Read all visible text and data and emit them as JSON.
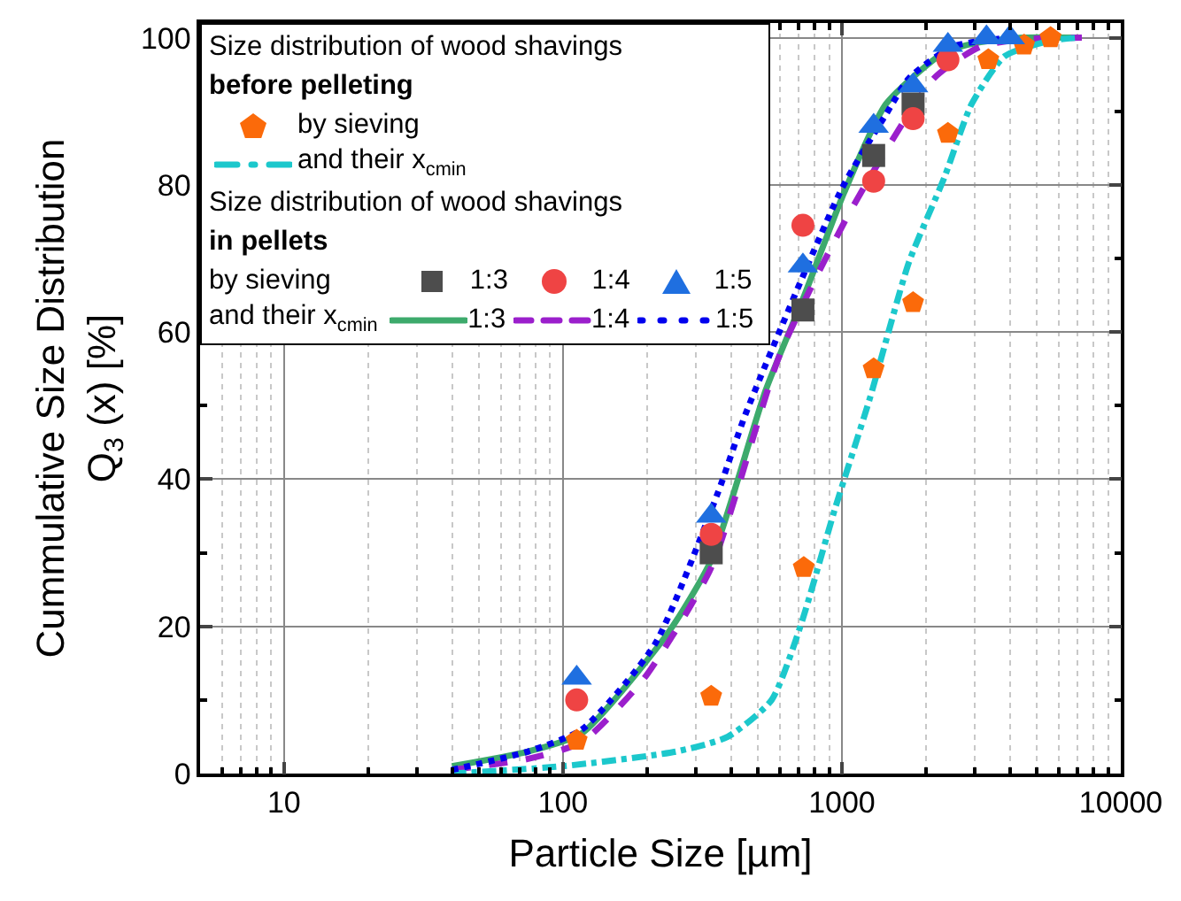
{
  "chart_data": {
    "type": "scatter",
    "xlabel": "Particle Size [µm]",
    "ylabel": "Cummulative Size Distribution\nQ$_{3}$ (x) [%]",
    "log": "x",
    "xlim": [
      5,
      10000
    ],
    "xticks": [
      10,
      100,
      1000,
      10000
    ],
    "ylim": [
      0,
      102
    ],
    "yticks": [
      0,
      20,
      40,
      60,
      80,
      100
    ],
    "grid": true,
    "legend": "top left",
    "annotations": [
      "Size distribution of wood shavings",
      "before pelleting",
      "Size distribution of wood shavings",
      "in pellets",
      "by sieving",
      "and their x$_{cmin}$"
    ],
    "series": [
      {
        "name": "by sieving",
        "color": "#fb6a0a",
        "x": [
          112,
          340,
          730,
          1300,
          1800,
          2400,
          3350,
          4500,
          5600
        ],
        "values": [
          4.5,
          10.5,
          28,
          55,
          64,
          87,
          97,
          99,
          100
        ]
      },
      {
        "name": "and their x$_{cmin}$",
        "type": "line",
        "marker": "none",
        "line_style": "dashdot",
        "color": "#1cc8cc",
        "x": [
          40,
          100,
          255,
          390,
          560,
          710,
          945,
          1260,
          1740,
          2330,
          2920,
          3840,
          5600,
          7000
        ],
        "values": [
          0,
          1,
          3,
          5,
          10,
          20,
          36,
          51,
          69.5,
          81,
          91,
          97.5,
          99.6,
          100
        ]
      },
      {
        "name": "1:3",
        "marker": "square",
        "color": "#4d4d4d",
        "x": [
          340,
          725,
          1300,
          1800
        ],
        "values": [
          30,
          63,
          84,
          91
        ]
      },
      {
        "name": "1:4",
        "marker": "circle",
        "color": "#ef4444",
        "x": [
          112,
          340,
          725,
          1300,
          1800,
          2400
        ],
        "values": [
          10,
          32.5,
          74.5,
          80.5,
          89,
          97
        ]
      },
      {
        "name": "1:5",
        "marker": "triangle",
        "color": "#1f6fe0",
        "x": [
          112,
          340,
          725,
          1300,
          1800,
          2400,
          3300,
          4000
        ],
        "values": [
          13,
          35,
          69,
          88,
          93.5,
          99,
          100,
          100
        ]
      },
      {
        "name": "1:3",
        "type": "line",
        "marker": "none",
        "line_style": "solid",
        "color": "#3daa6c",
        "x": [
          40,
          75,
          117,
          237,
          340,
          532,
          725,
          1020,
          1440,
          2330,
          3140,
          4500,
          7000
        ],
        "values": [
          1,
          3,
          5.5,
          19,
          29,
          52,
          64.5,
          79,
          91,
          98,
          99.4,
          100,
          100
        ]
      },
      {
        "name": "1:4",
        "type": "line",
        "marker": "none",
        "line_style": "dashed",
        "color": "#9b1fcc",
        "x": [
          40,
          75,
          117,
          196,
          340,
          600,
          1075,
          2140,
          3140,
          4500,
          7250
        ],
        "values": [
          0.5,
          2,
          4.3,
          13,
          28,
          57,
          76.5,
          94.5,
          98.8,
          99.8,
          100
        ]
      },
      {
        "name": "1:5",
        "type": "line",
        "marker": "none",
        "line_style": "dotted",
        "color": "#0000ee",
        "x": [
          40,
          75,
          117,
          213,
          358,
          453,
          1000,
          1440,
          1740,
          2500,
          4000
        ],
        "values": [
          0.5,
          3,
          6,
          17.5,
          38,
          49,
          79.5,
          89.6,
          94.5,
          98.8,
          100
        ]
      }
    ]
  }
}
